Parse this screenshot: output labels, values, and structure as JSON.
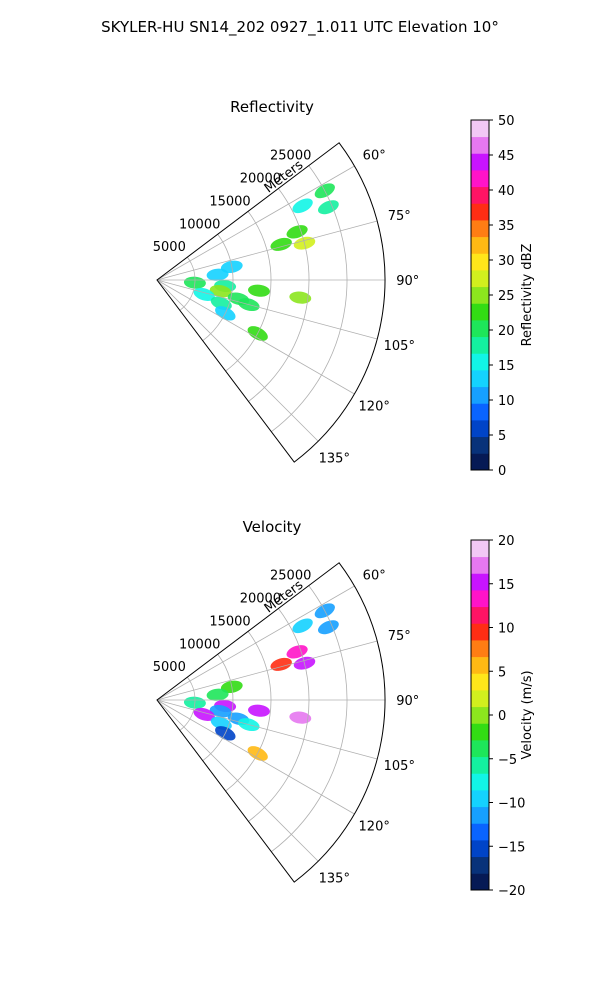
{
  "figure": {
    "title": "SKYLER-HU  SN14_202  0927_1.011 UTC Elevation 10°"
  },
  "chart_data": [
    {
      "type": "polar-sector",
      "title": "Reflectivity",
      "range_label": "Meters",
      "range_ticks": [
        5000,
        10000,
        15000,
        20000,
        25000
      ],
      "range_tick_labels": [
        "5000",
        "10000",
        "15000",
        "20000",
        "25000"
      ],
      "azimuth_ticks": [
        60,
        75,
        90,
        105,
        120,
        135
      ],
      "azimuth_tick_labels": [
        "60°",
        "75°",
        "90°",
        "105°",
        "120°",
        "135°"
      ],
      "azimuth_range": [
        53,
        143
      ],
      "range_max": 30000,
      "grid": true,
      "colorbar": {
        "label": "Reflectivity dBZ",
        "min": 0,
        "max": 50,
        "ticks": [
          0,
          5,
          10,
          15,
          20,
          25,
          30,
          35,
          40,
          45,
          50
        ],
        "tick_labels": [
          "0",
          "5",
          "10",
          "15",
          "20",
          "25",
          "30",
          "35",
          "40",
          "45",
          "50"
        ],
        "colors": [
          "#061a55",
          "#08327a",
          "#0044c8",
          "#0a64ff",
          "#16a0ff",
          "#14d2ff",
          "#12f5e6",
          "#14f0a0",
          "#1ee65a",
          "#32dc14",
          "#8ce61e",
          "#d2f01e",
          "#ffe61a",
          "#ffb914",
          "#ff7d14",
          "#ff2d14",
          "#ff1464",
          "#ff14c8",
          "#c814ff",
          "#e678f0",
          "#f2c8f5"
        ]
      },
      "cells": [
        {
          "az": 62,
          "r": 25000,
          "value": 20
        },
        {
          "az": 63,
          "r": 21500,
          "value": 15
        },
        {
          "az": 67,
          "r": 24500,
          "value": 18
        },
        {
          "az": 71,
          "r": 19500,
          "value": 22
        },
        {
          "az": 76,
          "r": 20000,
          "value": 27
        },
        {
          "az": 74,
          "r": 17000,
          "value": 22
        },
        {
          "az": 80,
          "r": 10000,
          "value": 14
        },
        {
          "az": 85,
          "r": 8000,
          "value": 12
        },
        {
          "az": 94,
          "r": 5000,
          "value": 20
        },
        {
          "az": 95,
          "r": 9000,
          "value": 18
        },
        {
          "az": 96,
          "r": 13500,
          "value": 22
        },
        {
          "az": 97,
          "r": 19000,
          "value": 26
        },
        {
          "az": 100,
          "r": 8500,
          "value": 24
        },
        {
          "az": 103,
          "r": 11000,
          "value": 21
        },
        {
          "az": 105,
          "r": 12500,
          "value": 20
        },
        {
          "az": 107,
          "r": 6500,
          "value": 16
        },
        {
          "az": 110,
          "r": 9000,
          "value": 18
        },
        {
          "az": 116,
          "r": 10000,
          "value": 12
        },
        {
          "az": 118,
          "r": 15000,
          "value": 22
        }
      ]
    },
    {
      "type": "polar-sector",
      "title": "Velocity",
      "range_label": "Meters",
      "range_ticks": [
        5000,
        10000,
        15000,
        20000,
        25000
      ],
      "range_tick_labels": [
        "5000",
        "10000",
        "15000",
        "20000",
        "25000"
      ],
      "azimuth_ticks": [
        60,
        75,
        90,
        105,
        120,
        135
      ],
      "azimuth_tick_labels": [
        "60°",
        "75°",
        "90°",
        "105°",
        "120°",
        "135°"
      ],
      "azimuth_range": [
        53,
        143
      ],
      "range_max": 30000,
      "grid": true,
      "colorbar": {
        "label": "Velocity (m/s)",
        "min": -20,
        "max": 20,
        "ticks": [
          -20,
          -15,
          -10,
          -5,
          0,
          5,
          10,
          15,
          20
        ],
        "tick_labels": [
          "−20",
          "−15",
          "−10",
          "−5",
          "0",
          "5",
          "10",
          "15",
          "20"
        ],
        "colors": [
          "#061a55",
          "#08327a",
          "#0044c8",
          "#0a64ff",
          "#16a0ff",
          "#14d2ff",
          "#12f5e6",
          "#14f0a0",
          "#1ee65a",
          "#32dc14",
          "#8ce61e",
          "#d2f01e",
          "#ffe61a",
          "#ffb914",
          "#ff7d14",
          "#ff2d14",
          "#ff1464",
          "#ff14c8",
          "#c814ff",
          "#e678f0",
          "#f2c8f5"
        ]
      },
      "cells": [
        {
          "az": 62,
          "r": 25000,
          "value": -11
        },
        {
          "az": 63,
          "r": 21500,
          "value": -9
        },
        {
          "az": 67,
          "r": 24500,
          "value": -12
        },
        {
          "az": 71,
          "r": 19500,
          "value": 14
        },
        {
          "az": 76,
          "r": 20000,
          "value": 15
        },
        {
          "az": 74,
          "r": 17000,
          "value": 10
        },
        {
          "az": 80,
          "r": 10000,
          "value": -2
        },
        {
          "az": 85,
          "r": 8000,
          "value": -3
        },
        {
          "az": 94,
          "r": 5000,
          "value": -6
        },
        {
          "az": 95,
          "r": 9000,
          "value": 16
        },
        {
          "az": 96,
          "r": 13500,
          "value": 15
        },
        {
          "az": 97,
          "r": 19000,
          "value": 17
        },
        {
          "az": 100,
          "r": 8500,
          "value": -11
        },
        {
          "az": 103,
          "r": 11000,
          "value": -12
        },
        {
          "az": 105,
          "r": 12500,
          "value": -8
        },
        {
          "az": 107,
          "r": 6500,
          "value": 15
        },
        {
          "az": 110,
          "r": 9000,
          "value": -10
        },
        {
          "az": 116,
          "r": 10000,
          "value": -15
        },
        {
          "az": 118,
          "r": 15000,
          "value": 5
        }
      ]
    }
  ]
}
